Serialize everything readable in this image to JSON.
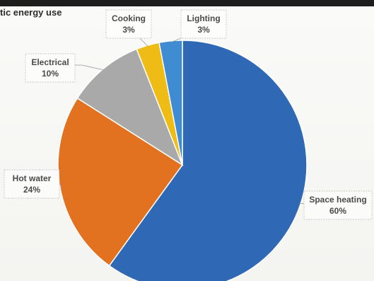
{
  "title": "tic energy use",
  "chart_data": {
    "type": "pie",
    "slices": [
      {
        "label": "Space heating",
        "value": 60,
        "value_label": "60%",
        "color": "#2f69b5"
      },
      {
        "label": "Hot water",
        "value": 24,
        "value_label": "24%",
        "color": "#e2721f"
      },
      {
        "label": "Electrical",
        "value": 10,
        "value_label": "10%",
        "color": "#a9a9a9"
      },
      {
        "label": "Cooking",
        "value": 3,
        "value_label": "3%",
        "color": "#efbc16"
      },
      {
        "label": "Lighting",
        "value": 3,
        "value_label": "3%",
        "color": "#3f8cd3"
      }
    ],
    "start_angle": "12 o'clock",
    "direction": "clockwise",
    "legend": "none",
    "data_labels": "outside, in boxes with leader lines"
  }
}
